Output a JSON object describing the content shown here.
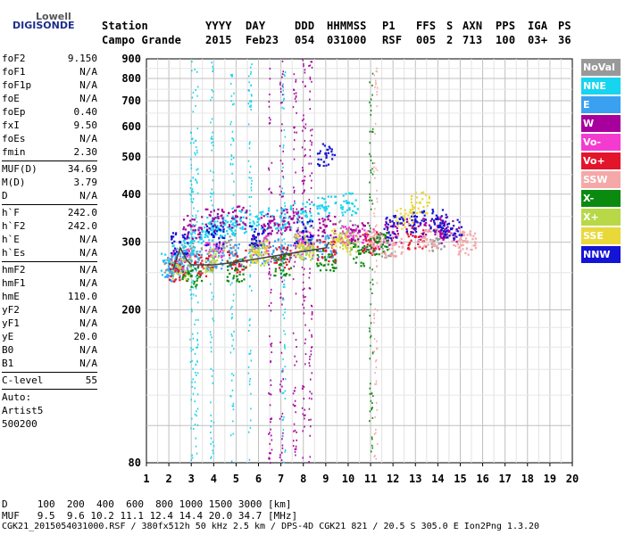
{
  "logo": {
    "line1": "Lowell",
    "line2": "DIGISONDE"
  },
  "header": {
    "cols": [
      {
        "h": "Station",
        "v": "Campo Grande",
        "x": 114
      },
      {
        "h": "YYYY",
        "v": "2015",
        "x": 230
      },
      {
        "h": "DAY",
        "v": "Feb23",
        "x": 275
      },
      {
        "h": "DDD",
        "v": "054",
        "x": 330
      },
      {
        "h": "HHMMSS",
        "v": "031000",
        "x": 366
      },
      {
        "h": "P1",
        "v": "RSF",
        "x": 428
      },
      {
        "h": "FFS",
        "v": "005",
        "x": 466
      },
      {
        "h": "S",
        "v": "2",
        "x": 500
      },
      {
        "h": "AXN",
        "v": "713",
        "x": 518
      },
      {
        "h": "PPS",
        "v": "100",
        "x": 555
      },
      {
        "h": "IGA",
        "v": "03+",
        "x": 591
      },
      {
        "h": "PS",
        "v": "36",
        "x": 625
      }
    ]
  },
  "params": [
    [
      {
        "k": "foF2",
        "v": "9.150"
      },
      {
        "k": "foF1",
        "v": "N/A"
      },
      {
        "k": "foF1p",
        "v": "N/A"
      },
      {
        "k": "foE",
        "v": "N/A"
      },
      {
        "k": "foEp",
        "v": "0.40"
      },
      {
        "k": "fxI",
        "v": "9.50"
      },
      {
        "k": "foEs",
        "v": "N/A"
      },
      {
        "k": "fmin",
        "v": "2.30"
      }
    ],
    [
      {
        "k": "MUF(D)",
        "v": "34.69"
      },
      {
        "k": "M(D)",
        "v": "3.79"
      },
      {
        "k": "D",
        "v": "N/A"
      }
    ],
    [
      {
        "k": "h`F",
        "v": "242.0"
      },
      {
        "k": "h`F2",
        "v": "242.0"
      },
      {
        "k": "h`E",
        "v": "N/A"
      },
      {
        "k": "h`Es",
        "v": "N/A"
      }
    ],
    [
      {
        "k": "hmF2",
        "v": "N/A"
      },
      {
        "k": "hmF1",
        "v": "N/A"
      },
      {
        "k": "hmE",
        "v": "110.0"
      },
      {
        "k": "yF2",
        "v": "N/A"
      },
      {
        "k": "yF1",
        "v": "N/A"
      },
      {
        "k": "yE",
        "v": "20.0"
      },
      {
        "k": "B0",
        "v": "N/A"
      },
      {
        "k": "B1",
        "v": "N/A"
      }
    ],
    [
      {
        "k": "C-level",
        "v": "55"
      }
    ]
  ],
  "autoscaling": {
    "line1": "Auto:",
    "line2": "Artist5",
    "line3": "500200"
  },
  "legend": [
    {
      "label": "NoVal",
      "color": "#999999"
    },
    {
      "label": "NNE",
      "color": "#17d4ef"
    },
    {
      "label": "E",
      "color": "#3aa0f0"
    },
    {
      "label": "W",
      "color": "#a7009d"
    },
    {
      "label": "Vo-",
      "color": "#f33bd0"
    },
    {
      "label": "Vo+",
      "color": "#e3152b"
    },
    {
      "label": "SSW",
      "color": "#f5a8a8"
    },
    {
      "label": "X-",
      "color": "#0b8a10"
    },
    {
      "label": "X+",
      "color": "#b8d848"
    },
    {
      "label": "SSE",
      "color": "#e9d83a"
    },
    {
      "label": "NNW",
      "color": "#1414d4"
    }
  ],
  "chart_data": {
    "type": "scatter",
    "xlabel": "",
    "ylabel": "",
    "xlim": [
      1,
      20
    ],
    "ylim": [
      80,
      900
    ],
    "xticks": [
      "1",
      "2",
      "3",
      "4",
      "5",
      "6",
      "7",
      "8",
      "9",
      "10",
      "11",
      "12",
      "13",
      "14",
      "15",
      "16",
      "17",
      "18",
      "19",
      "20"
    ],
    "yticks": [
      "80",
      "200",
      "300",
      "400",
      "500",
      "600",
      "700",
      "800",
      "900"
    ],
    "y_scale": "log",
    "grid": true,
    "series": [
      {
        "name": "NoVal",
        "color": "#999999",
        "points": [
          [
            2.2,
            265
          ],
          [
            3.0,
            280
          ],
          [
            4.5,
            300
          ],
          [
            6.0,
            290
          ],
          [
            8.0,
            310
          ],
          [
            10.0,
            320
          ],
          [
            11.5,
            295
          ],
          [
            14.0,
            305
          ]
        ]
      },
      {
        "name": "NNE",
        "color": "#17d4ef",
        "points": [
          [
            2.0,
            265
          ],
          [
            2.5,
            280
          ],
          [
            3.0,
            300
          ],
          [
            3.5,
            320
          ],
          [
            4.0,
            330
          ],
          [
            4.5,
            335
          ],
          [
            5.0,
            340
          ],
          [
            6.0,
            345
          ],
          [
            7.0,
            350
          ],
          [
            8.0,
            360
          ],
          [
            9.0,
            370
          ],
          [
            10.0,
            380
          ]
        ]
      },
      {
        "name": "E",
        "color": "#3aa0f0",
        "points": [
          [
            2.0,
            255
          ],
          [
            2.5,
            262
          ],
          [
            3.0,
            268
          ],
          [
            4.0,
            272
          ],
          [
            5.0,
            278
          ],
          [
            6.0,
            282
          ],
          [
            7.0,
            288
          ],
          [
            8.0,
            292
          ],
          [
            9.0,
            295
          ]
        ]
      },
      {
        "name": "W",
        "color": "#a7009d",
        "points": [
          [
            3.0,
            330
          ],
          [
            4.0,
            345
          ],
          [
            5.0,
            350
          ],
          [
            6.5,
            340
          ],
          [
            7.5,
            345
          ],
          [
            9.0,
            330
          ],
          [
            10.5,
            320
          ],
          [
            12.0,
            318
          ],
          [
            13.0,
            325
          ],
          [
            14.0,
            330
          ],
          [
            14.5,
            320
          ]
        ]
      },
      {
        "name": "Vo-",
        "color": "#f33bd0",
        "points": [
          [
            2.5,
            270
          ],
          [
            4.0,
            285
          ],
          [
            6.0,
            295
          ],
          [
            8.0,
            300
          ],
          [
            10.0,
            310
          ],
          [
            11.0,
            305
          ]
        ]
      },
      {
        "name": "Vo+",
        "color": "#e3152b",
        "points": [
          [
            2.4,
            255
          ],
          [
            3.5,
            262
          ],
          [
            5.0,
            268
          ],
          [
            7.0,
            275
          ],
          [
            9.0,
            285
          ],
          [
            11.0,
            300
          ],
          [
            13.0,
            310
          ]
        ]
      },
      {
        "name": "SSW",
        "color": "#f5a8a8",
        "points": [
          [
            11.2,
            300
          ],
          [
            12.0,
            295
          ],
          [
            13.5,
            305
          ],
          [
            15.0,
            305
          ],
          [
            15.3,
            300
          ]
        ]
      },
      {
        "name": "X-",
        "color": "#0b8a10",
        "points": [
          [
            3.0,
            245
          ],
          [
            5.0,
            255
          ],
          [
            7.0,
            262
          ],
          [
            9.0,
            270
          ],
          [
            10.5,
            280
          ],
          [
            11.3,
            300
          ]
        ]
      },
      {
        "name": "X+",
        "color": "#b8d848",
        "points": [
          [
            2.5,
            258
          ],
          [
            4.0,
            270
          ],
          [
            6.0,
            280
          ],
          [
            8.0,
            290
          ],
          [
            10.0,
            300
          ]
        ]
      },
      {
        "name": "SSE",
        "color": "#e9d83a",
        "points": [
          [
            6.0,
            285
          ],
          [
            8.0,
            295
          ],
          [
            9.5,
            305
          ],
          [
            12.5,
            350
          ],
          [
            13.2,
            380
          ]
        ]
      },
      {
        "name": "NNW",
        "color": "#1414d4",
        "points": [
          [
            2.5,
            300
          ],
          [
            4.0,
            310
          ],
          [
            6.0,
            315
          ],
          [
            8.0,
            320
          ],
          [
            9.0,
            510
          ],
          [
            12.0,
            330
          ],
          [
            13.0,
            340
          ],
          [
            14.0,
            345
          ],
          [
            14.6,
            325
          ]
        ]
      }
    ],
    "trace": {
      "color": "#444444",
      "points": [
        [
          2.2,
          255
        ],
        [
          2.5,
          290
        ],
        [
          2.8,
          270
        ],
        [
          3.0,
          262
        ],
        [
          4.0,
          262
        ],
        [
          5.0,
          266
        ],
        [
          6.0,
          272
        ],
        [
          7.0,
          278
        ],
        [
          8.0,
          284
        ],
        [
          9.0,
          290
        ],
        [
          9.15,
          300
        ]
      ]
    }
  },
  "bottom": {
    "line1": "D     100  200  400  600  800 1000 1500 3000 [km]",
    "line2": "MUF   9.5  9.6 10.2 11.1 12.4 14.4 20.0 34.7 [MHz]",
    "line3": "CGK21_2015054031000.RSF / 380fx512h 50 kHz 2.5 km / DPS-4D CGK21 821 / 20.5 S 305.0 E Ion2Png 1.3.20"
  }
}
